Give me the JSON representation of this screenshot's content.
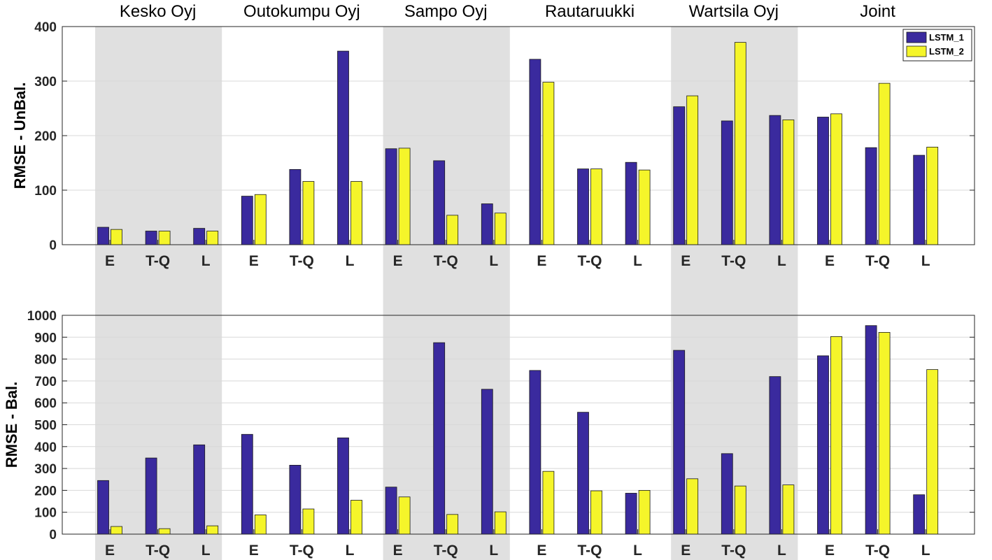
{
  "chart_data": {
    "type": "bar",
    "group_labels": [
      "Kesko Oyj",
      "Outokumpu Oyj",
      "Sampo Oyj",
      "Rautaruukki",
      "Wartsila Oyj",
      "Joint"
    ],
    "categories": [
      "E",
      "T-Q",
      "L",
      "E",
      "T-Q",
      "L",
      "E",
      "T-Q",
      "L",
      "E",
      "T-Q",
      "L",
      "E",
      "T-Q",
      "L",
      "E",
      "T-Q",
      "L"
    ],
    "shaded_groups": [
      0,
      2,
      4
    ],
    "legend": [
      {
        "name": "LSTM_1",
        "color": "#3a2a9e"
      },
      {
        "name": "LSTM_2",
        "color": "#f5f52a"
      }
    ],
    "panels": [
      {
        "ylabel": "RMSE - UnBal.",
        "ylim": [
          0,
          400
        ],
        "yticks": [
          0,
          100,
          200,
          300,
          400
        ],
        "grid": true,
        "series": [
          {
            "name": "LSTM_1",
            "values": [
              32,
              25,
              30,
              89,
              138,
              355,
              176,
              154,
              75,
              340,
              139,
              151,
              253,
              227,
              237,
              234,
              178,
              164
            ]
          },
          {
            "name": "LSTM_2",
            "values": [
              28,
              25,
              25,
              92,
              116,
              116,
              177,
              54,
              58,
              298,
              139,
              137,
              273,
              371,
              229,
              240,
              296,
              179
            ]
          }
        ]
      },
      {
        "ylabel": "RMSE - Bal.",
        "ylim": [
          0,
          1000
        ],
        "yticks": [
          0,
          100,
          200,
          300,
          400,
          500,
          600,
          700,
          800,
          900,
          1000
        ],
        "grid": true,
        "series": [
          {
            "name": "LSTM_1",
            "values": [
              245,
              348,
              408,
              456,
              315,
              440,
              215,
              875,
              662,
              748,
              557,
              187,
              840,
              368,
              720,
              815,
              953,
              180
            ]
          },
          {
            "name": "LSTM_2",
            "values": [
              35,
              25,
              38,
              88,
              115,
              155,
              170,
              90,
              102,
              287,
              198,
              200,
              253,
              220,
              225,
              903,
              922,
              752
            ]
          }
        ]
      }
    ]
  }
}
